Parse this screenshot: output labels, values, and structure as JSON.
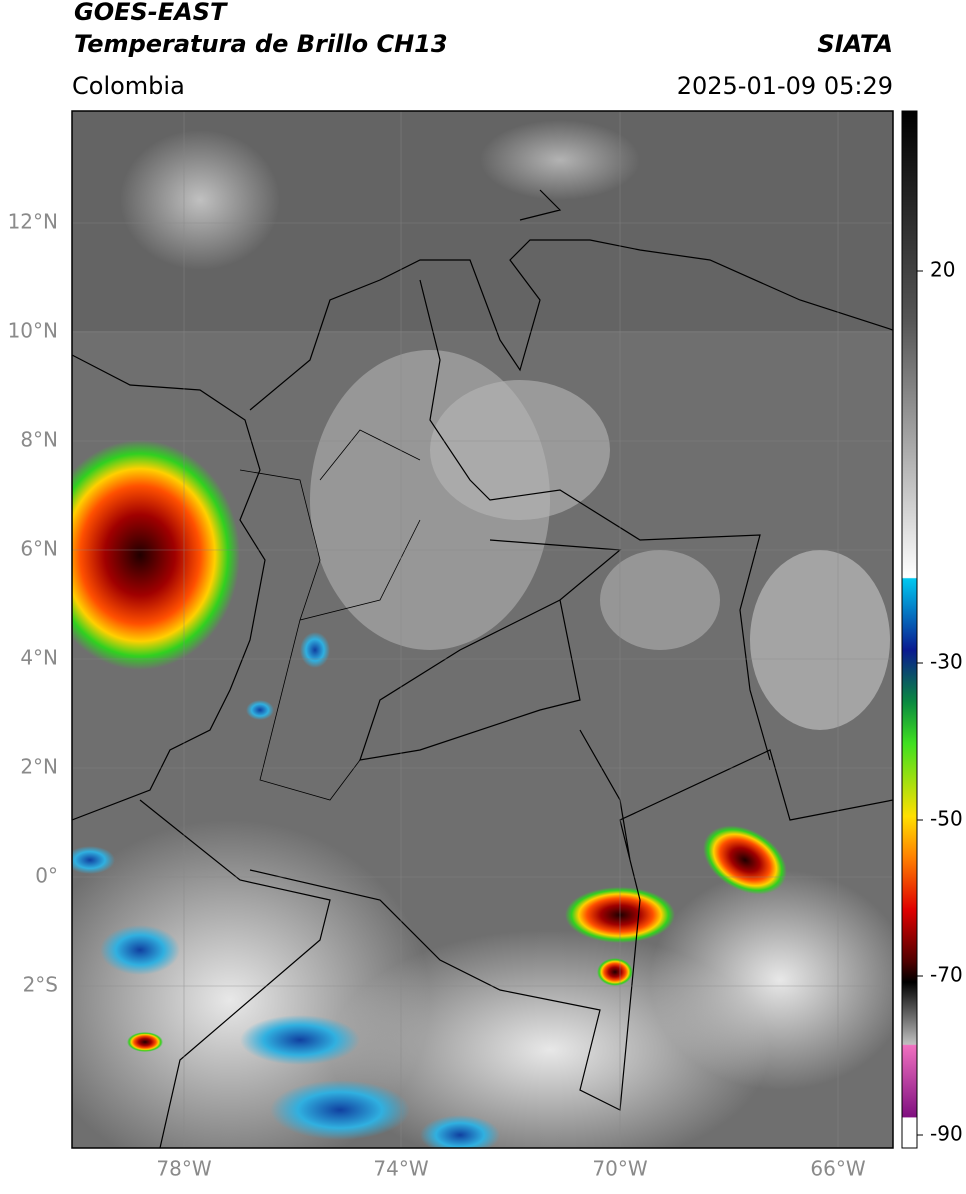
{
  "header": {
    "title": "GOES-EAST",
    "subtitle": "Temperatura de Brillo CH13",
    "source": "SIATA",
    "region": "Colombia",
    "datetime": "2025-01-09 05:29"
  },
  "map": {
    "longitude_labels": [
      "78°W",
      "74°W",
      "70°W",
      "66°W"
    ],
    "latitude_labels": [
      "12°N",
      "10°N",
      "8°N",
      "6°N",
      "4°N",
      "2°N",
      "0°",
      "2°S"
    ]
  },
  "colorbar": {
    "tick_labels": [
      "20",
      "-30",
      "-50",
      "-70",
      "-90"
    ]
  }
}
